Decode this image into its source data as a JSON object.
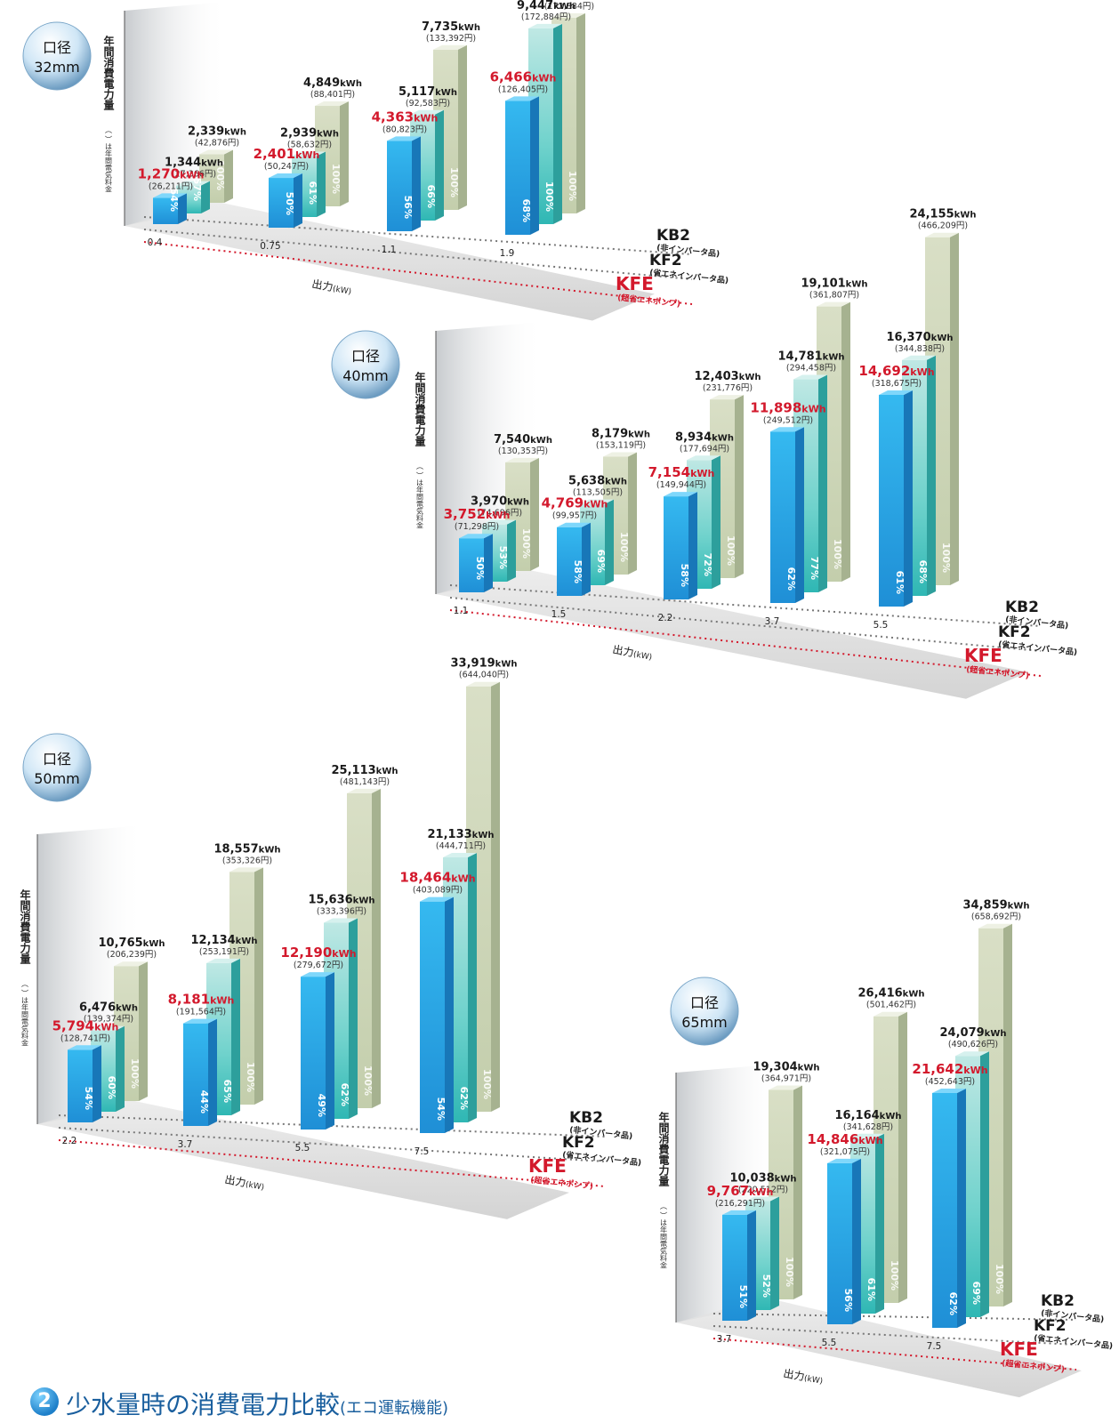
{
  "units": {
    "energy": "kWh",
    "yen": "円",
    "percent": "%"
  },
  "axis_title": "年間消費電力量",
  "axis_subtitle": "（ ）は年間電気料金",
  "x_title": "出力",
  "x_unit": "(kW)",
  "pumps": [
    {
      "code": "KB2",
      "desc": "(非インバータ品)"
    },
    {
      "code": "KF2",
      "desc": "(省エネインバータ品)"
    },
    {
      "code": "KFE",
      "desc": "(超省エネポンプ)"
    }
  ],
  "colors": {
    "kfe": "#2fb6ee",
    "kf2": "#59d1cc",
    "kb2": "#c9d3b2",
    "red": "#d3192c",
    "dark": "#1a1a1a"
  },
  "chart_data": [
    {
      "type": "bar",
      "badge": [
        "口径",
        "32mm"
      ],
      "categories": [
        "0.4",
        "0.75",
        "1.1",
        "1.9"
      ],
      "series": [
        {
          "name": "KFE",
          "values": [
            1270,
            2401,
            4363,
            6466
          ],
          "cost": [
            "26,211",
            "50,247",
            "80,823",
            "126,405"
          ],
          "pct": [
            "54",
            "50",
            "56",
            "68"
          ]
        },
        {
          "name": "KF2",
          "values": [
            1344,
            2939,
            5117,
            9447
          ],
          "cost": [
            "27,366",
            "58,632",
            "92,583",
            "172,884"
          ],
          "pct": [
            "57",
            "61",
            "66",
            "100"
          ]
        },
        {
          "name": "KB2",
          "values": [
            2339,
            4849,
            7735,
            9447
          ],
          "cost": [
            "42,876",
            "88,401",
            "133,392",
            "172,884"
          ],
          "pct": [
            "100",
            "100",
            "100",
            "100"
          ]
        }
      ],
      "xlabel": "出力(kW)"
    },
    {
      "type": "bar",
      "badge": [
        "口径",
        "40mm"
      ],
      "categories": [
        "1.1",
        "1.5",
        "2.2",
        "3.7",
        "5.5"
      ],
      "series": [
        {
          "name": "KFE",
          "values": [
            3752,
            4769,
            7154,
            11898,
            14692
          ],
          "cost": [
            "71,298",
            "99,957",
            "149,944",
            "249,512",
            "318,675"
          ],
          "pct": [
            "50",
            "58",
            "58",
            "62",
            "61"
          ]
        },
        {
          "name": "KF2",
          "values": [
            3970,
            5638,
            8934,
            14781,
            16370
          ],
          "cost": [
            "74,696",
            "113,505",
            "177,694",
            "294,458",
            "344,838"
          ],
          "pct": [
            "53",
            "69",
            "72",
            "77",
            "68"
          ]
        },
        {
          "name": "KB2",
          "values": [
            7540,
            8179,
            12403,
            19101,
            24155
          ],
          "cost": [
            "130,353",
            "153,119",
            "231,776",
            "361,807",
            "466,209"
          ],
          "pct": [
            "100",
            "100",
            "100",
            "100",
            "100"
          ]
        }
      ],
      "xlabel": "出力(kW)"
    },
    {
      "type": "bar",
      "badge": [
        "口径",
        "50mm"
      ],
      "categories": [
        "2.2",
        "3.7",
        "5.5",
        "7.5"
      ],
      "series": [
        {
          "name": "KFE",
          "values": [
            5794,
            8181,
            12190,
            18464
          ],
          "cost": [
            "128,741",
            "191,564",
            "279,672",
            "403,089"
          ],
          "pct": [
            "54",
            "44",
            "49",
            "54"
          ]
        },
        {
          "name": "KF2",
          "values": [
            6476,
            12134,
            15636,
            21133
          ],
          "cost": [
            "139,374",
            "253,191",
            "333,396",
            "444,711"
          ],
          "pct": [
            "60",
            "65",
            "62",
            "62"
          ]
        },
        {
          "name": "KB2",
          "values": [
            10765,
            18557,
            25113,
            33919
          ],
          "cost": [
            "206,239",
            "353,326",
            "481,143",
            "644,040"
          ],
          "pct": [
            "100",
            "100",
            "100",
            "100"
          ]
        }
      ],
      "xlabel": "出力(kW)"
    },
    {
      "type": "bar",
      "badge": [
        "口径",
        "65mm"
      ],
      "categories": [
        "3.7",
        "5.5",
        "7.5"
      ],
      "series": [
        {
          "name": "KFE",
          "values": [
            9767,
            14846,
            21642
          ],
          "cost": [
            "216,291",
            "321,075",
            "452,643"
          ],
          "pct": [
            "51",
            "56",
            "62"
          ]
        },
        {
          "name": "KF2",
          "values": [
            10038,
            16164,
            24079
          ],
          "cost": [
            "220,512",
            "341,628",
            "490,626"
          ],
          "pct": [
            "52",
            "61",
            "69"
          ]
        },
        {
          "name": "KB2",
          "values": [
            19304,
            26416,
            34859
          ],
          "cost": [
            "364,971",
            "501,462",
            "658,692"
          ],
          "pct": [
            "100",
            "100",
            "100"
          ]
        }
      ],
      "xlabel": "出力(kW)"
    }
  ],
  "footer": {
    "number": "2",
    "title": "少水量時の消費電力比較",
    "subtitle": "(エコ運転機能)"
  }
}
